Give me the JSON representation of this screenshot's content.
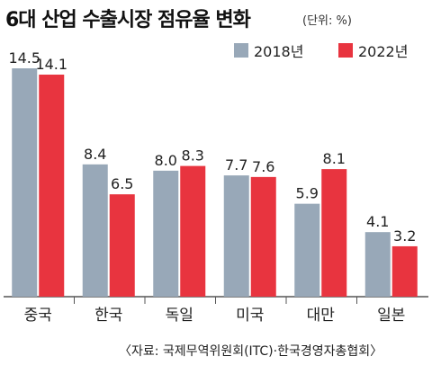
{
  "title": "6대 산업 수출시장 점유율 변화",
  "unit": "(단위: %)",
  "source": "〈자료: 국제무역위원회(ITC)·한국경영자총협회〉",
  "colors": {
    "s2018": "#98a8b8",
    "s2022": "#e8343f",
    "axis": "#555555",
    "grid": "#c9c9c9"
  },
  "chart_data": {
    "type": "bar",
    "title": "6대 산업 수출시장 점유율 변화",
    "ylabel": "",
    "xlabel": "",
    "unit": "%",
    "categories": [
      "중국",
      "한국",
      "독일",
      "미국",
      "대만",
      "일본"
    ],
    "series": [
      {
        "name": "2018년",
        "values": [
          14.5,
          8.4,
          8.0,
          7.7,
          5.9,
          4.1
        ],
        "labels": [
          "14.5",
          "8.4",
          "8.0",
          "7.7",
          "5.9",
          "4.1"
        ]
      },
      {
        "name": "2022년",
        "values": [
          14.1,
          6.5,
          8.3,
          7.6,
          8.1,
          3.2
        ],
        "labels": [
          "14.1",
          "6.5",
          "8.3",
          "7.6",
          "8.1",
          "3.2"
        ]
      }
    ],
    "ylim": [
      0,
      14.5
    ],
    "legend": "top-right",
    "grid": true
  }
}
